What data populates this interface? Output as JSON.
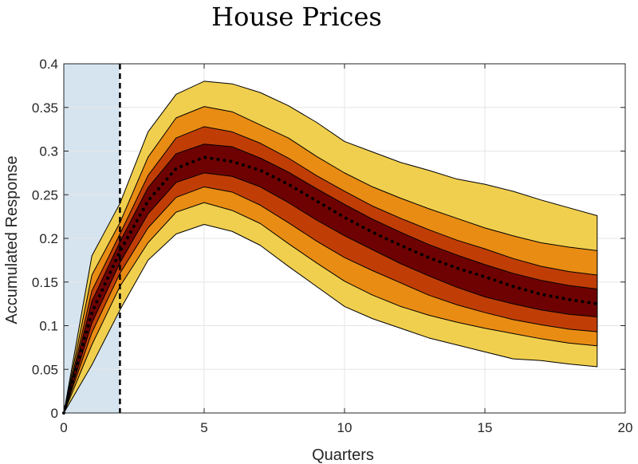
{
  "chart_data": {
    "type": "area",
    "title": "House Prices",
    "xlabel": "Quarters",
    "ylabel": "Accumulated Response",
    "xlim": [
      0,
      20
    ],
    "ylim": [
      0,
      0.4
    ],
    "xticks": [
      "0",
      "5",
      "10",
      "15",
      "20"
    ],
    "yticks": [
      "0",
      "0.05",
      "0.1",
      "0.15",
      "0.2",
      "0.25",
      "0.3",
      "0.35",
      "0.4"
    ],
    "grid": true,
    "shaded_region": {
      "x_start": 0,
      "x_end": 2,
      "color": "#d6e4f0"
    },
    "vertical_line": {
      "x": 2,
      "style": "dashed"
    },
    "x": [
      0,
      1,
      2,
      3,
      4,
      5,
      6,
      7,
      8,
      9,
      10,
      11,
      12,
      13,
      14,
      15,
      16,
      17,
      18,
      19
    ],
    "median": [
      0,
      0.115,
      0.185,
      0.243,
      0.28,
      0.293,
      0.288,
      0.278,
      0.262,
      0.243,
      0.224,
      0.207,
      0.192,
      0.178,
      0.166,
      0.156,
      0.145,
      0.136,
      0.13,
      0.125
    ],
    "bands": [
      {
        "level": "outer",
        "color": "#f0cf4f",
        "upper": [
          0,
          0.18,
          0.24,
          0.322,
          0.365,
          0.38,
          0.377,
          0.367,
          0.352,
          0.333,
          0.311,
          0.299,
          0.287,
          0.278,
          0.268,
          0.262,
          0.254,
          0.244,
          0.235,
          0.226
        ],
        "lower": [
          0,
          0.055,
          0.118,
          0.175,
          0.205,
          0.216,
          0.208,
          0.192,
          0.168,
          0.145,
          0.122,
          0.108,
          0.097,
          0.086,
          0.078,
          0.07,
          0.062,
          0.06,
          0.056,
          0.053
        ]
      },
      {
        "level": "second",
        "color": "#e98c14",
        "upper": [
          0,
          0.158,
          0.218,
          0.293,
          0.338,
          0.351,
          0.345,
          0.33,
          0.315,
          0.294,
          0.275,
          0.259,
          0.246,
          0.234,
          0.223,
          0.212,
          0.203,
          0.195,
          0.19,
          0.186
        ],
        "lower": [
          0,
          0.078,
          0.145,
          0.195,
          0.23,
          0.241,
          0.232,
          0.217,
          0.194,
          0.172,
          0.151,
          0.135,
          0.122,
          0.112,
          0.104,
          0.097,
          0.091,
          0.085,
          0.08,
          0.077
        ]
      },
      {
        "level": "third",
        "color": "#c03e05",
        "upper": [
          0,
          0.14,
          0.205,
          0.272,
          0.315,
          0.328,
          0.322,
          0.309,
          0.292,
          0.272,
          0.254,
          0.237,
          0.223,
          0.21,
          0.198,
          0.188,
          0.177,
          0.168,
          0.162,
          0.158
        ],
        "lower": [
          0,
          0.092,
          0.16,
          0.212,
          0.247,
          0.259,
          0.253,
          0.238,
          0.218,
          0.197,
          0.178,
          0.163,
          0.149,
          0.135,
          0.124,
          0.115,
          0.107,
          0.101,
          0.096,
          0.093
        ]
      },
      {
        "level": "inner",
        "color": "#6e0202",
        "upper": [
          0,
          0.128,
          0.196,
          0.258,
          0.297,
          0.308,
          0.305,
          0.292,
          0.276,
          0.257,
          0.239,
          0.222,
          0.207,
          0.193,
          0.181,
          0.17,
          0.16,
          0.152,
          0.146,
          0.142
        ],
        "lower": [
          0,
          0.103,
          0.172,
          0.228,
          0.264,
          0.275,
          0.271,
          0.259,
          0.241,
          0.221,
          0.203,
          0.187,
          0.171,
          0.157,
          0.144,
          0.133,
          0.125,
          0.118,
          0.113,
          0.11
        ]
      }
    ]
  }
}
